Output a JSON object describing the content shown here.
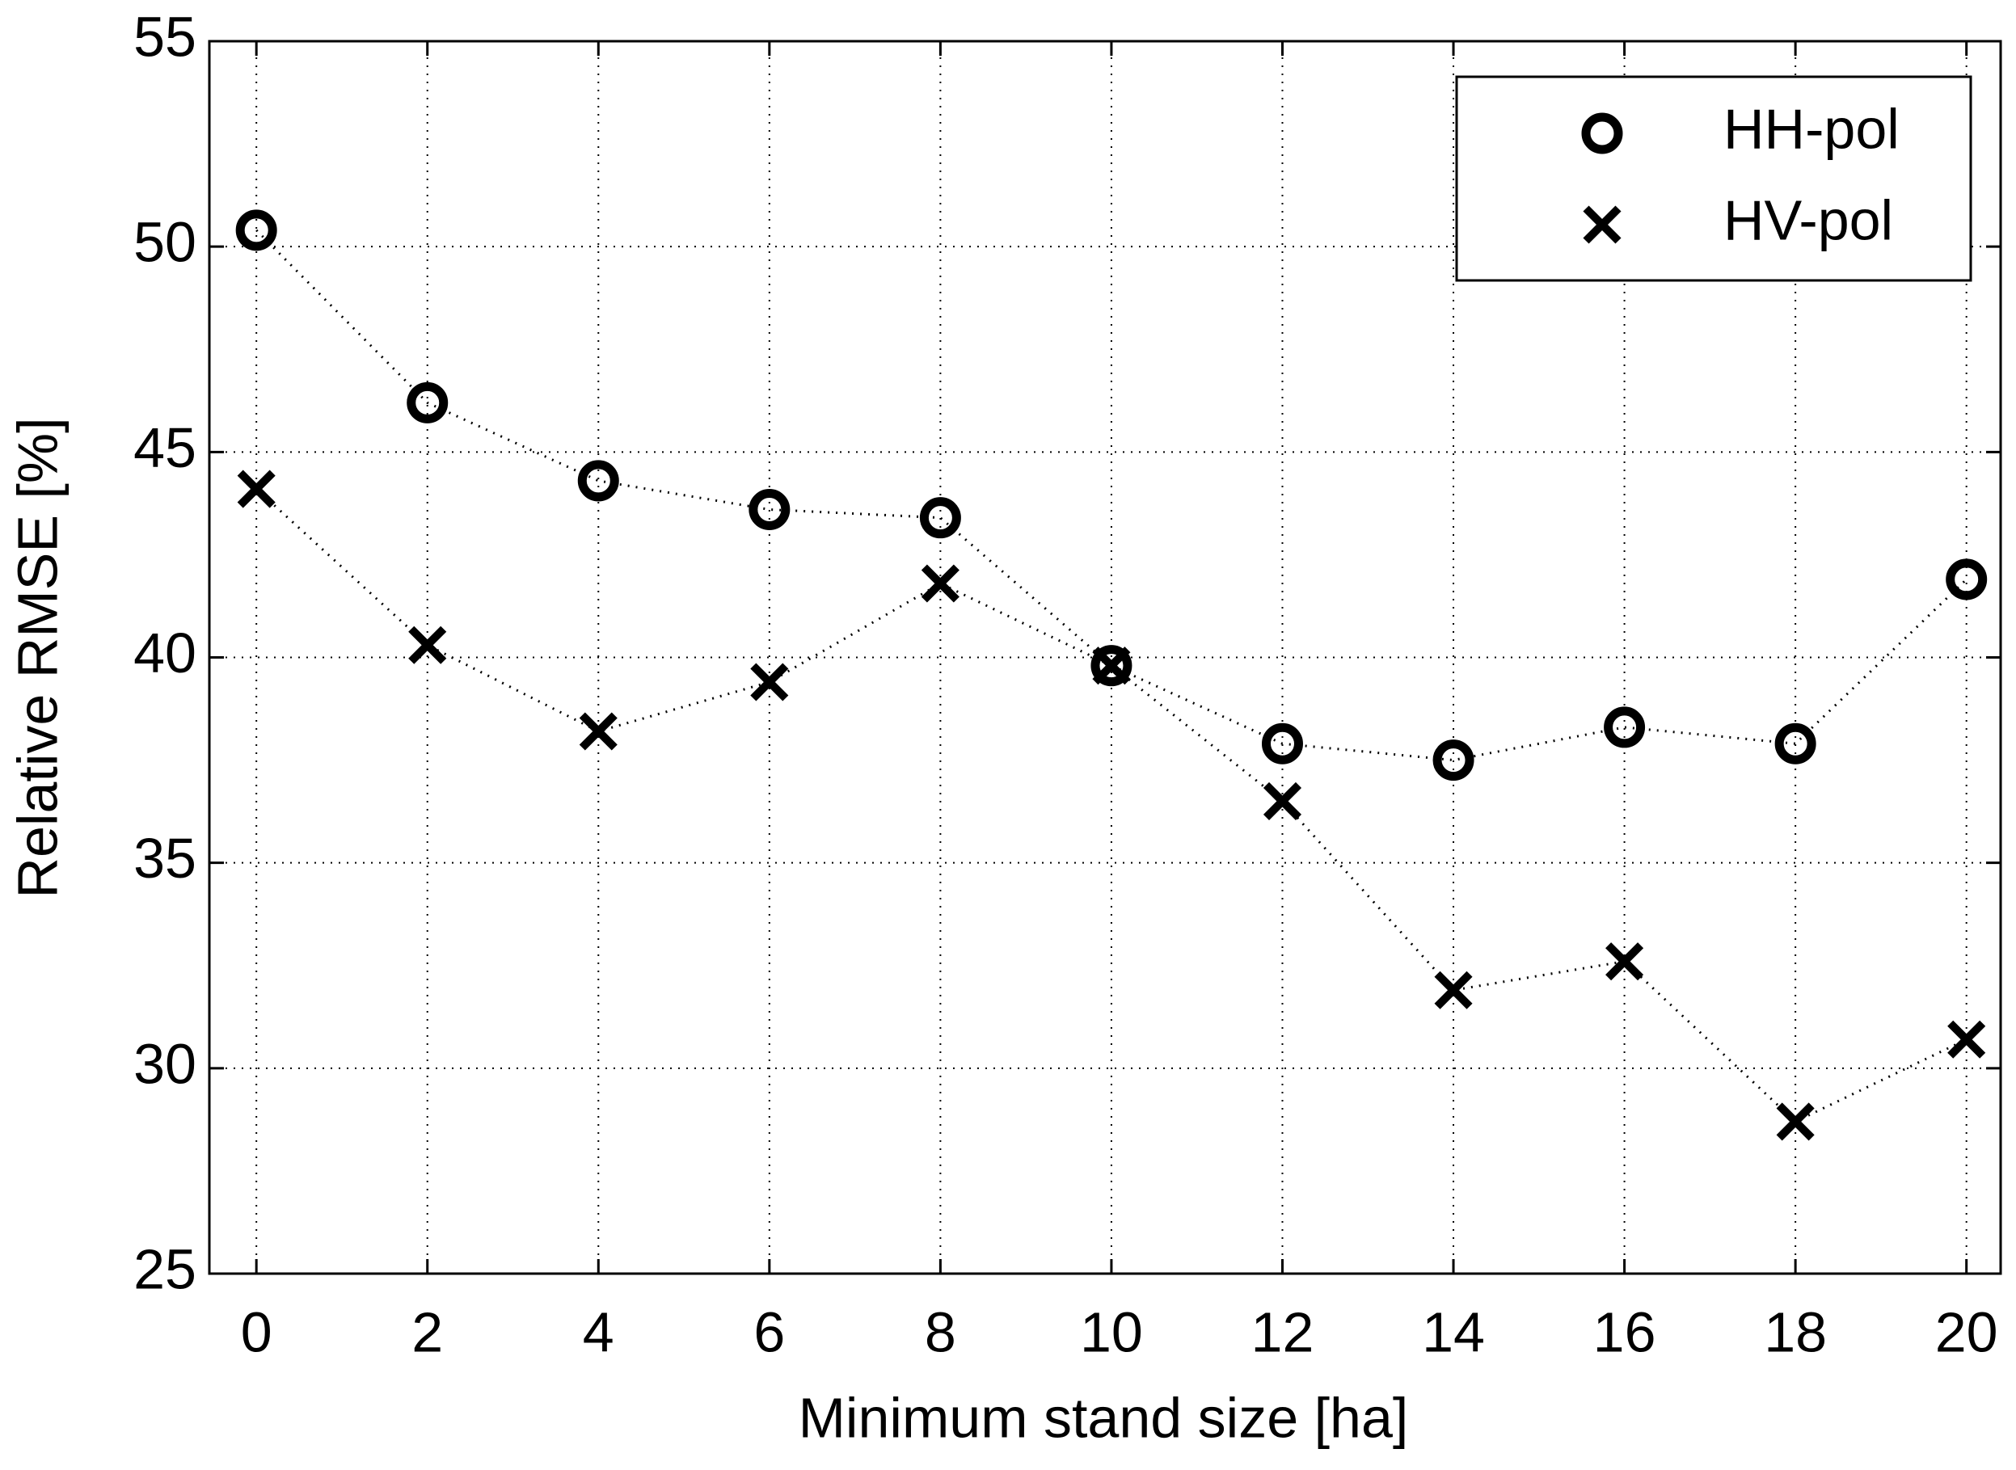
{
  "chart_data": {
    "type": "line",
    "x_label": "Minimum stand size   [ha]",
    "y_label": "Relative RMSE   [%]",
    "x": [
      0,
      2,
      4,
      6,
      8,
      10,
      12,
      14,
      16,
      18,
      20
    ],
    "series": [
      {
        "name": "HH-pol",
        "color": "#000000",
        "marker": "o",
        "values": [
          50.4,
          46.2,
          44.3,
          43.6,
          43.4,
          39.8,
          37.9,
          37.5,
          38.3,
          37.9,
          41.9
        ]
      },
      {
        "name": "HV-pol",
        "color": "#000000",
        "marker": "x",
        "values": [
          44.1,
          40.3,
          38.2,
          39.4,
          41.8,
          39.8,
          36.5,
          31.9,
          32.6,
          28.7,
          30.7
        ]
      }
    ],
    "xlim": [
      -0.55,
      20.4
    ],
    "xticks": [
      0,
      2,
      4,
      6,
      8,
      10,
      12,
      14,
      16,
      18,
      20
    ],
    "ylim": [
      25,
      55
    ],
    "yticks": [
      25,
      30,
      35,
      40,
      45,
      50,
      55
    ],
    "grid": true,
    "legend": "upper right"
  }
}
